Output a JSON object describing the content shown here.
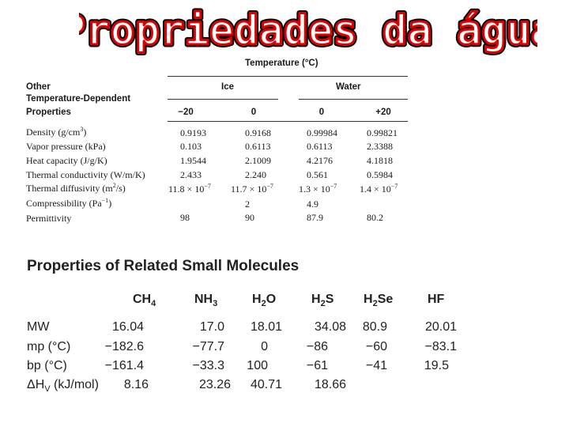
{
  "slide_title": "Propriedades da água",
  "table1": {
    "header_top": "Temperature (°C)",
    "header_ice": "Ice",
    "header_water": "Water",
    "row_label_header": [
      "Other",
      "Temperature-Dependent",
      "Properties"
    ],
    "temps": [
      "−20",
      "0",
      "0",
      "+20"
    ],
    "rows": [
      {
        "label": "Density (g/cm",
        "label_sup": "3",
        "label_end": ")",
        "values": [
          "0.9193",
          "0.9168",
          "0.99984",
          "0.99821"
        ]
      },
      {
        "label": "Vapor pressure (kPa)",
        "values": [
          "0.103",
          "0.6113",
          "0.6113",
          "2.3388"
        ]
      },
      {
        "label": "Heat capacity (J/g/K)",
        "values": [
          "1.9544",
          "2.1009",
          "4.2176",
          "4.1818"
        ]
      },
      {
        "label": "Thermal conductivity (W/m/K)",
        "values": [
          "2.433",
          "2.240",
          "0.561",
          "0.5984"
        ]
      },
      {
        "label": "Thermal diffusivity (m",
        "label_sup": "2",
        "label_end": "/s)",
        "values": [
          "11.8 × 10",
          "11.7 × 10",
          "1.3 × 10",
          "1.4 × 10"
        ],
        "value_sup": "−7"
      },
      {
        "label": "Compressibility (Pa",
        "label_sup": "−1",
        "label_end": ")",
        "values": [
          "",
          "2",
          "4.9",
          ""
        ]
      },
      {
        "label": "Permittivity",
        "values": [
          "98",
          "90",
          "87.9",
          "80.2"
        ]
      }
    ]
  },
  "table2": {
    "title": "Properties of Related Small Molecules",
    "columns": [
      {
        "base": "CH",
        "sub": "4",
        "end": ""
      },
      {
        "base": "NH",
        "sub": "3",
        "end": ""
      },
      {
        "base": "H",
        "sub": "2",
        "end": "O"
      },
      {
        "base": "H",
        "sub": "2",
        "end": "S"
      },
      {
        "base": "H",
        "sub": "2",
        "end": "Se"
      },
      {
        "base": "HF",
        "sub": "",
        "end": ""
      }
    ],
    "rows": [
      {
        "label": "MW",
        "values": [
          "16.04",
          "17.0",
          "18.01",
          "34.08",
          "80.9",
          "20.01"
        ]
      },
      {
        "label": "mp (°C)",
        "values": [
          "−182.6",
          "−77.7",
          "0",
          "−86",
          "−60",
          "−83.1"
        ]
      },
      {
        "label": "bp (°C)",
        "values": [
          "−161.4",
          "−33.3",
          "100",
          "−61",
          "−41",
          "19.5"
        ]
      },
      {
        "label_pre": "ΔH",
        "label_sub": "V",
        "label_post": " (kJ/mol)",
        "values": [
          "8.16",
          "23.26",
          "40.71",
          "18.66",
          "",
          ""
        ]
      }
    ]
  }
}
